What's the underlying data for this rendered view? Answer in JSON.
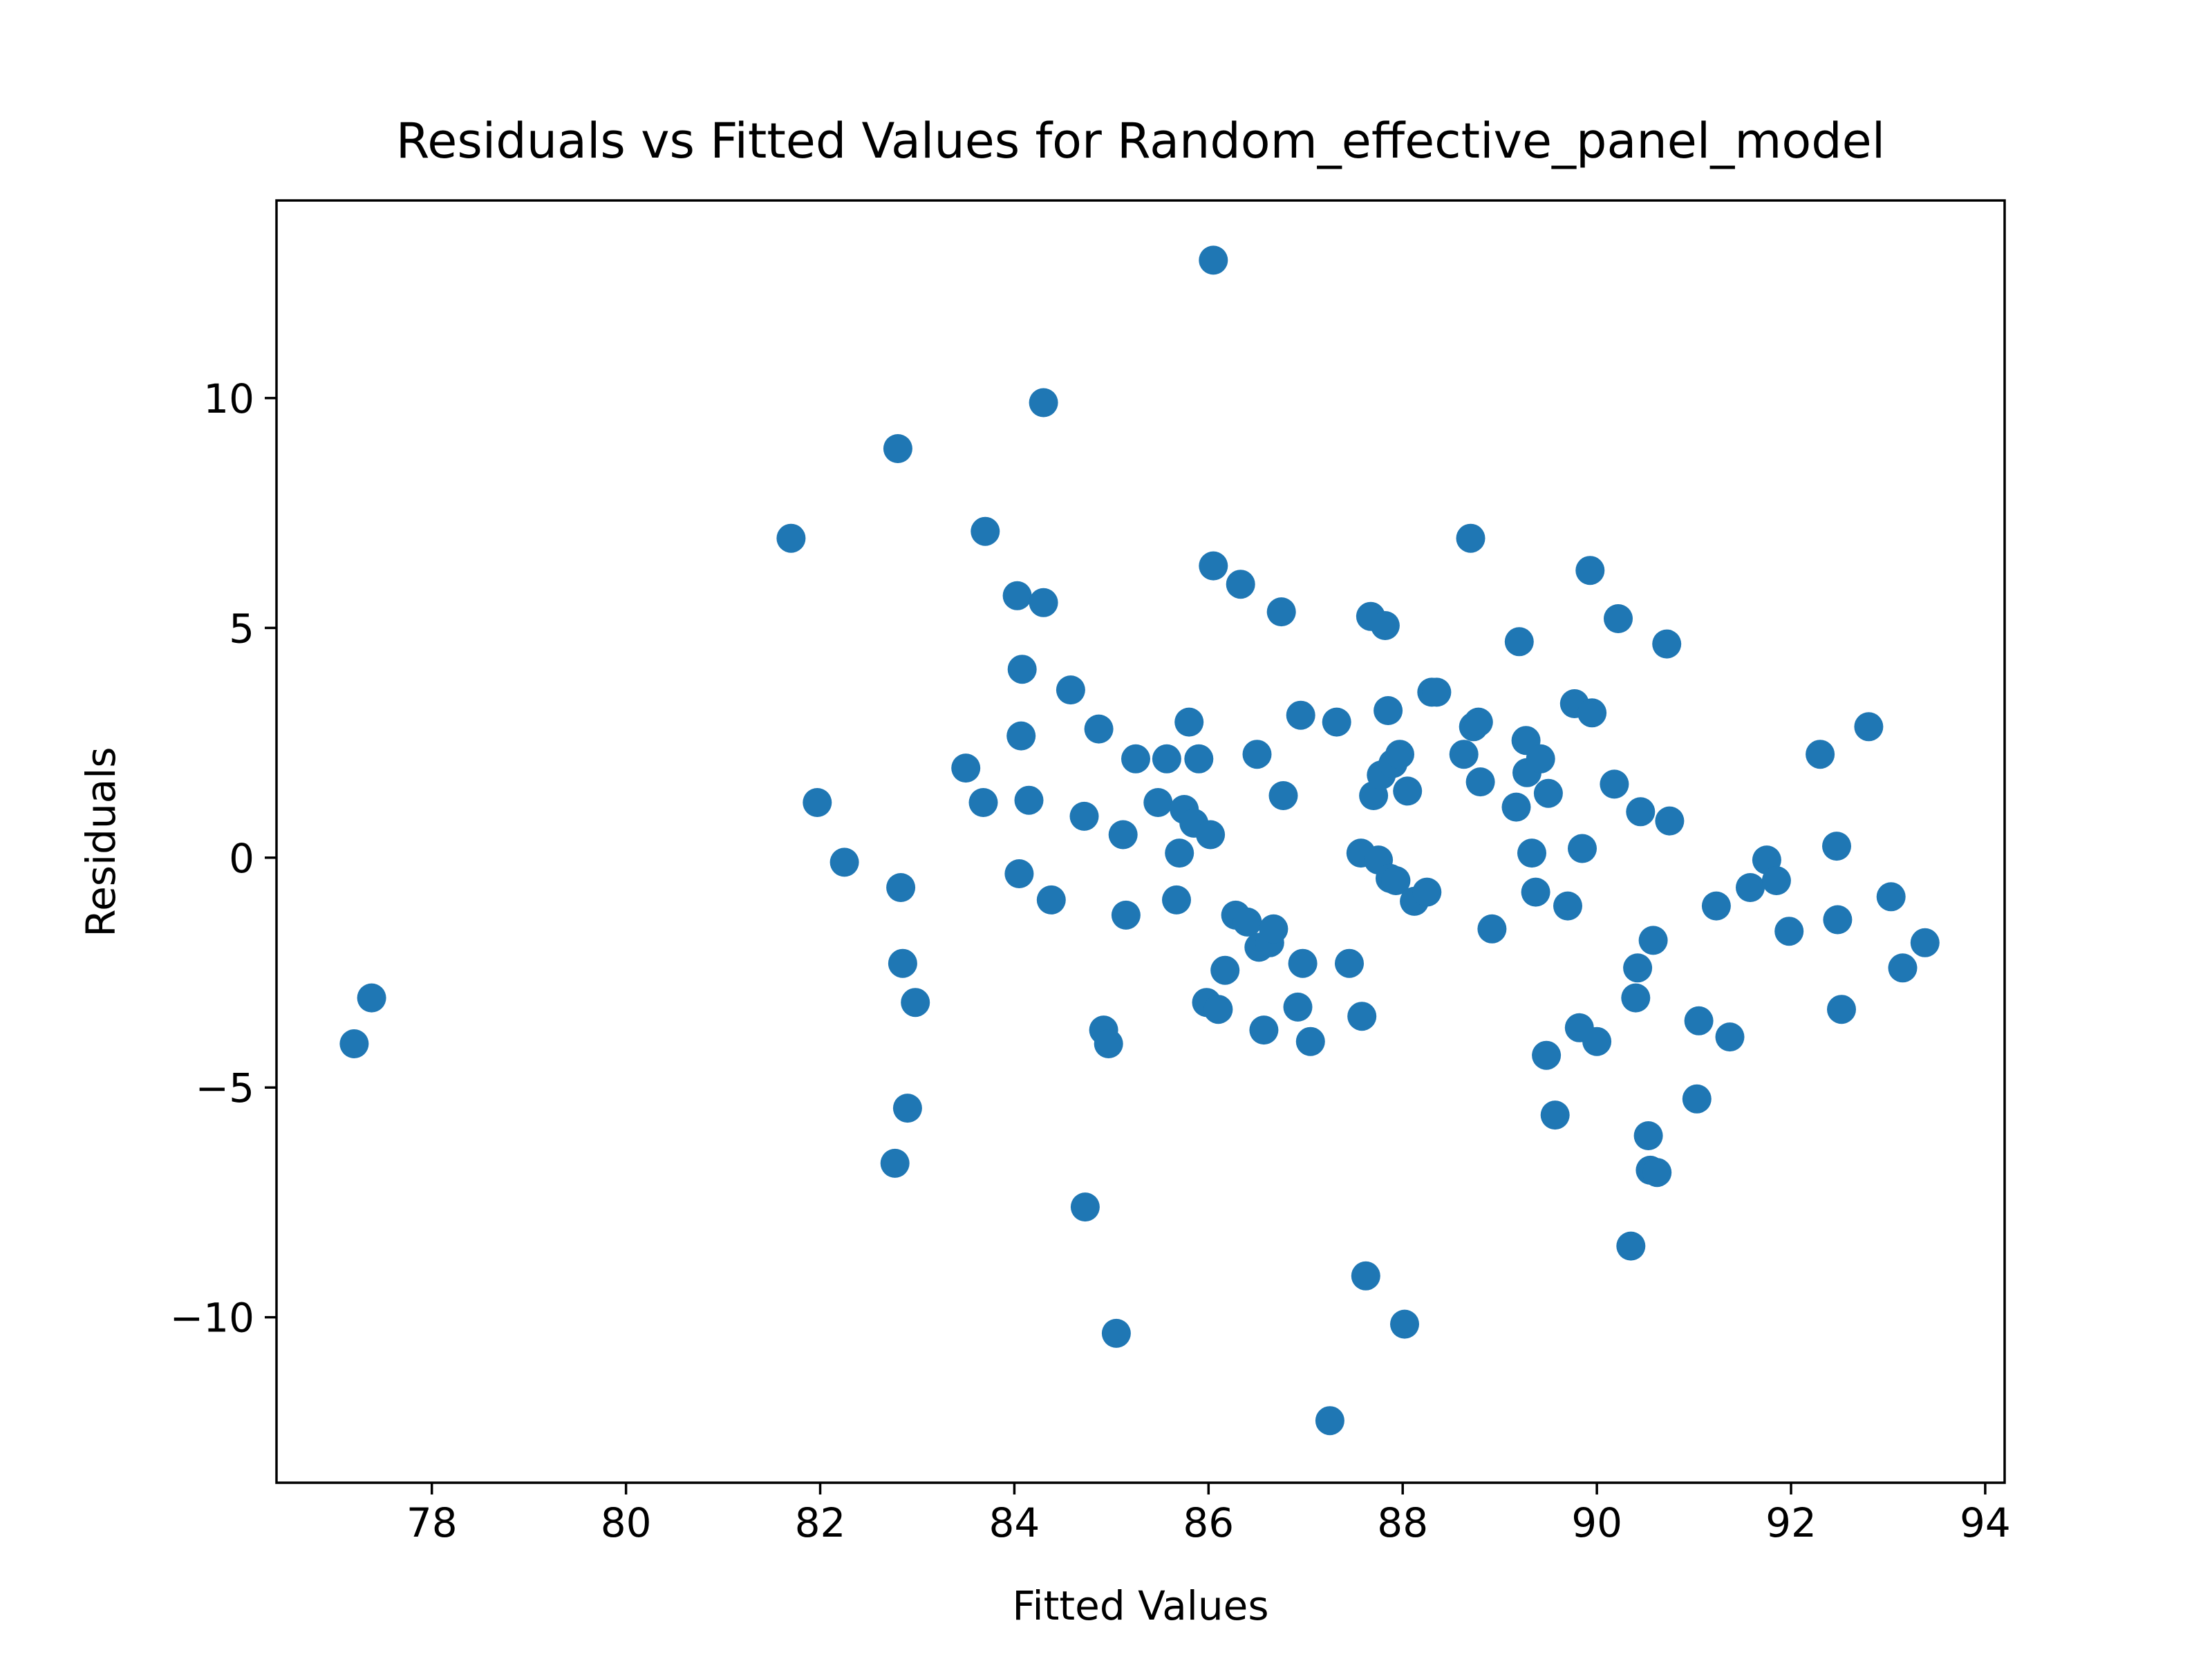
{
  "chart_data": {
    "type": "scatter",
    "title": "Residuals vs Fitted Values for Random_effective_panel_model",
    "xlabel": "Fitted Values",
    "ylabel": "Residuals",
    "xlim": [
      76.4,
      94.2
    ],
    "ylim": [
      -13.6,
      14.3
    ],
    "xticks": [
      78,
      80,
      82,
      84,
      86,
      88,
      90,
      92,
      94
    ],
    "yticks": [
      -10,
      -5,
      0,
      5,
      10
    ],
    "xtick_labels": [
      "78",
      "80",
      "82",
      "84",
      "86",
      "88",
      "90",
      "92",
      "94"
    ],
    "ytick_labels": [
      "−10",
      "−5",
      "0",
      "5",
      "10"
    ],
    "grid": false,
    "legend": "none",
    "marker_color": "#1f77b4",
    "points": [
      [
        77.2,
        -4.05
      ],
      [
        77.38,
        -3.05
      ],
      [
        81.7,
        6.95
      ],
      [
        81.97,
        1.2
      ],
      [
        82.25,
        -0.1
      ],
      [
        82.77,
        -6.65
      ],
      [
        82.8,
        8.9
      ],
      [
        82.83,
        -0.65
      ],
      [
        82.85,
        -2.3
      ],
      [
        82.9,
        -5.45
      ],
      [
        82.98,
        -3.15
      ],
      [
        83.5,
        1.95
      ],
      [
        83.68,
        1.2
      ],
      [
        83.7,
        7.1
      ],
      [
        84.03,
        5.7
      ],
      [
        84.05,
        -0.35
      ],
      [
        84.07,
        2.65
      ],
      [
        84.08,
        4.1
      ],
      [
        84.15,
        1.25
      ],
      [
        84.3,
        9.9
      ],
      [
        84.3,
        5.55
      ],
      [
        84.38,
        -0.92
      ],
      [
        84.58,
        3.65
      ],
      [
        84.72,
        0.9
      ],
      [
        84.73,
        -7.6
      ],
      [
        84.87,
        2.8
      ],
      [
        84.92,
        -3.75
      ],
      [
        84.97,
        -4.05
      ],
      [
        85.05,
        -10.35
      ],
      [
        85.12,
        0.5
      ],
      [
        85.15,
        -1.25
      ],
      [
        85.25,
        2.15
      ],
      [
        85.48,
        1.2
      ],
      [
        85.57,
        2.15
      ],
      [
        85.67,
        -0.92
      ],
      [
        85.7,
        0.1
      ],
      [
        85.75,
        1.05
      ],
      [
        85.8,
        2.95
      ],
      [
        85.85,
        0.75
      ],
      [
        85.9,
        2.15
      ],
      [
        85.98,
        -3.15
      ],
      [
        86.02,
        0.5
      ],
      [
        86.05,
        13.0
      ],
      [
        86.05,
        6.35
      ],
      [
        86.1,
        -3.3
      ],
      [
        86.17,
        -2.45
      ],
      [
        86.28,
        -1.25
      ],
      [
        86.33,
        5.95
      ],
      [
        86.4,
        -1.4
      ],
      [
        86.5,
        2.25
      ],
      [
        86.52,
        -1.95
      ],
      [
        86.57,
        -3.75
      ],
      [
        86.63,
        -1.85
      ],
      [
        86.67,
        -1.55
      ],
      [
        86.75,
        5.35
      ],
      [
        86.77,
        1.35
      ],
      [
        86.92,
        -3.25
      ],
      [
        86.95,
        3.1
      ],
      [
        86.97,
        -2.3
      ],
      [
        87.05,
        -4.0
      ],
      [
        87.25,
        -12.25
      ],
      [
        87.32,
        2.95
      ],
      [
        87.45,
        -2.3
      ],
      [
        87.57,
        0.1
      ],
      [
        87.58,
        -3.45
      ],
      [
        87.62,
        -9.1
      ],
      [
        87.67,
        5.25
      ],
      [
        87.7,
        1.35
      ],
      [
        87.75,
        -0.05
      ],
      [
        87.78,
        1.8
      ],
      [
        87.82,
        5.05
      ],
      [
        87.85,
        3.2
      ],
      [
        87.87,
        -0.45
      ],
      [
        87.9,
        2.05
      ],
      [
        87.93,
        -0.5
      ],
      [
        87.97,
        2.25
      ],
      [
        88.02,
        -10.15
      ],
      [
        88.05,
        1.45
      ],
      [
        88.12,
        -0.95
      ],
      [
        88.25,
        -0.75
      ],
      [
        88.3,
        3.6
      ],
      [
        88.35,
        3.6
      ],
      [
        88.63,
        2.25
      ],
      [
        88.7,
        6.95
      ],
      [
        88.73,
        2.85
      ],
      [
        88.78,
        2.95
      ],
      [
        88.8,
        1.65
      ],
      [
        88.92,
        -1.55
      ],
      [
        89.17,
        1.1
      ],
      [
        89.2,
        4.7
      ],
      [
        89.27,
        2.55
      ],
      [
        89.28,
        1.85
      ],
      [
        89.33,
        0.1
      ],
      [
        89.37,
        -0.75
      ],
      [
        89.42,
        2.15
      ],
      [
        89.48,
        -4.3
      ],
      [
        89.5,
        1.4
      ],
      [
        89.57,
        -5.6
      ],
      [
        89.7,
        -1.05
      ],
      [
        89.77,
        3.35
      ],
      [
        89.82,
        -3.7
      ],
      [
        89.85,
        0.2
      ],
      [
        89.93,
        6.25
      ],
      [
        89.95,
        3.15
      ],
      [
        90.0,
        -4.0
      ],
      [
        90.18,
        1.6
      ],
      [
        90.22,
        5.2
      ],
      [
        90.35,
        -8.45
      ],
      [
        90.4,
        -3.05
      ],
      [
        90.42,
        -2.4
      ],
      [
        90.45,
        1.0
      ],
      [
        90.53,
        -6.05
      ],
      [
        90.55,
        -6.8
      ],
      [
        90.58,
        -1.8
      ],
      [
        90.62,
        -6.85
      ],
      [
        90.72,
        4.65
      ],
      [
        90.75,
        0.8
      ],
      [
        91.03,
        -5.25
      ],
      [
        91.05,
        -3.55
      ],
      [
        91.23,
        -1.05
      ],
      [
        91.37,
        -3.9
      ],
      [
        91.58,
        -0.65
      ],
      [
        91.75,
        -0.05
      ],
      [
        91.85,
        -0.5
      ],
      [
        91.98,
        -1.6
      ],
      [
        92.3,
        2.25
      ],
      [
        92.47,
        0.25
      ],
      [
        92.48,
        -1.35
      ],
      [
        92.52,
        -3.3
      ],
      [
        92.8,
        2.85
      ],
      [
        93.03,
        -0.85
      ],
      [
        93.15,
        -2.4
      ],
      [
        93.38,
        -1.85
      ]
    ]
  }
}
